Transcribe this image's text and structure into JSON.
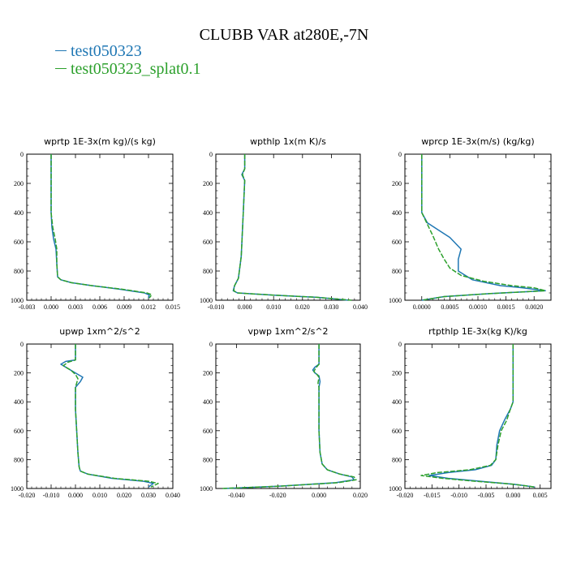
{
  "title": "CLUBB VAR at280E,-7N",
  "legend": [
    {
      "label": "test050323",
      "color": "#1f77b4"
    },
    {
      "label": "test050323_splat0.1",
      "color": "#2ca02c"
    }
  ],
  "chart_data": [
    {
      "type": "line",
      "title": "wprtp   1E-3x(m kg)/(s kg)",
      "xlim": [
        -0.003,
        0.015
      ],
      "ylim": [
        1000,
        0
      ],
      "xticks": [
        -0.003,
        0.0,
        0.003,
        0.006,
        0.009,
        0.012,
        0.015
      ],
      "xtick_labels": [
        "-0.003",
        "0.000",
        "0.003",
        "0.006",
        "0.009",
        "0.012",
        "0.015"
      ],
      "yticks": [
        0,
        200,
        400,
        600,
        800,
        1000
      ],
      "ytick_labels": [
        "0",
        "200",
        "400",
        "600",
        "800",
        "1000"
      ],
      "series": [
        {
          "name": "test050323",
          "x": [
            0.0,
            0.0,
            0.0,
            0.0001,
            0.0003,
            0.0006,
            0.0007,
            0.0008,
            0.0012,
            0.0025,
            0.005,
            0.0085,
            0.0115,
            0.0121,
            0.012
          ],
          "y": [
            0,
            200,
            400,
            500,
            580,
            650,
            750,
            840,
            860,
            880,
            900,
            925,
            950,
            965,
            985
          ]
        },
        {
          "name": "test050323_splat0.1",
          "x": [
            0.0,
            0.0,
            0.0,
            0.0002,
            0.0005,
            0.0007,
            0.0007,
            0.0008,
            0.0012,
            0.0025,
            0.005,
            0.0088,
            0.0118,
            0.0124,
            0.0121
          ],
          "y": [
            0,
            200,
            400,
            500,
            580,
            650,
            750,
            840,
            860,
            880,
            900,
            925,
            950,
            962,
            985
          ]
        }
      ]
    },
    {
      "type": "line",
      "title": "wpthlp   1x(m K)/s",
      "xlim": [
        -0.01,
        0.04
      ],
      "ylim": [
        1000,
        0
      ],
      "xticks": [
        -0.01,
        0.0,
        0.01,
        0.02,
        0.03,
        0.04
      ],
      "xtick_labels": [
        "-0.010",
        "0.000",
        "0.010",
        "0.020",
        "0.030",
        "0.040"
      ],
      "yticks": [
        0,
        200,
        400,
        600,
        800,
        1000
      ],
      "ytick_labels": [
        "0",
        "200",
        "400",
        "600",
        "800",
        "1000"
      ],
      "series": [
        {
          "name": "test050323",
          "x": [
            0.0,
            0.0,
            -0.001,
            0.0,
            -0.0005,
            -0.0012,
            -0.0022,
            -0.0035,
            -0.004,
            -0.0025,
            0.01,
            0.025,
            0.036
          ],
          "y": [
            0,
            100,
            140,
            180,
            400,
            700,
            850,
            900,
            935,
            950,
            965,
            980,
            1000
          ]
        },
        {
          "name": "test050323_splat0.1",
          "x": [
            0.0,
            0.0,
            -0.0008,
            0.0,
            -0.0005,
            -0.0012,
            -0.0022,
            -0.0035,
            -0.0038,
            -0.0025,
            0.01,
            0.025,
            0.037
          ],
          "y": [
            0,
            100,
            140,
            180,
            400,
            700,
            850,
            900,
            935,
            950,
            965,
            980,
            1000
          ]
        }
      ]
    },
    {
      "type": "line",
      "title": "wprcp   1E-3x(m/s) (kg/kg)",
      "xlim": [
        -0.0003,
        0.0023
      ],
      "ylim": [
        1000,
        0
      ],
      "xticks": [
        0.0,
        0.0005,
        0.001,
        0.0015,
        0.002
      ],
      "xtick_labels": [
        "0.0000",
        "0.0005",
        "0.0010",
        "0.0015",
        "0.0020"
      ],
      "yticks": [
        0,
        200,
        400,
        600,
        800,
        1000
      ],
      "ytick_labels": [
        "0",
        "200",
        "400",
        "600",
        "800",
        "1000"
      ],
      "series": [
        {
          "name": "test050323",
          "x": [
            0.0,
            0.0,
            0.0,
            0.0001,
            0.0003,
            0.0005,
            0.0007,
            0.00065,
            0.00065,
            0.0009,
            0.0014,
            0.0018,
            0.0022,
            0.0012,
            0.0004,
            0.0
          ],
          "y": [
            0,
            300,
            400,
            470,
            520,
            570,
            650,
            720,
            800,
            860,
            900,
            915,
            935,
            955,
            975,
            1000
          ]
        },
        {
          "name": "test050323_splat0.1",
          "x": [
            0.0,
            0.0,
            0.0,
            0.0001,
            0.0002,
            0.0003,
            0.0004,
            0.0005,
            0.0007,
            0.0011,
            0.0016,
            0.002,
            0.0022,
            0.0012,
            0.0004,
            0.0
          ],
          "y": [
            0,
            300,
            400,
            480,
            560,
            650,
            720,
            780,
            830,
            870,
            900,
            915,
            935,
            955,
            975,
            1000
          ]
        }
      ]
    },
    {
      "type": "line",
      "title": "upwp   1xm^2/s^2",
      "xlim": [
        -0.02,
        0.04
      ],
      "ylim": [
        1000,
        0
      ],
      "xticks": [
        -0.02,
        -0.01,
        0.0,
        0.01,
        0.02,
        0.03,
        0.04
      ],
      "xtick_labels": [
        "-0.020",
        "-0.010",
        "0.000",
        "0.010",
        "0.020",
        "0.030",
        "0.040"
      ],
      "yticks": [
        0,
        200,
        400,
        600,
        800,
        1000
      ],
      "ytick_labels": [
        "0",
        "200",
        "400",
        "600",
        "800",
        "1000"
      ],
      "series": [
        {
          "name": "test050323",
          "x": [
            0.0,
            0.0,
            -0.004,
            -0.006,
            -0.003,
            0.0,
            0.003,
            0.002,
            0.0,
            0.0,
            0.0005,
            0.001,
            0.0015,
            0.002,
            0.005,
            0.015,
            0.028,
            0.032,
            0.03
          ],
          "y": [
            0,
            110,
            120,
            140,
            170,
            200,
            230,
            260,
            300,
            450,
            600,
            750,
            850,
            880,
            900,
            930,
            950,
            965,
            990
          ]
        },
        {
          "name": "test050323_splat0.1",
          "x": [
            0.0,
            0.0,
            -0.003,
            -0.005,
            -0.002,
            0.0,
            0.001,
            0.0005,
            0.0,
            0.0,
            0.0005,
            0.001,
            0.0015,
            0.002,
            0.005,
            0.016,
            0.03,
            0.034,
            0.031
          ],
          "y": [
            0,
            110,
            125,
            150,
            180,
            210,
            240,
            270,
            300,
            450,
            600,
            750,
            850,
            880,
            900,
            930,
            950,
            965,
            990
          ]
        }
      ]
    },
    {
      "type": "line",
      "title": "vpwp   1xm^2/s^2",
      "xlim": [
        -0.05,
        0.02
      ],
      "ylim": [
        1000,
        0
      ],
      "xticks": [
        -0.04,
        -0.02,
        0.0,
        0.02
      ],
      "xtick_labels": [
        "-0.040",
        "-0.020",
        "0.000",
        "0.020"
      ],
      "yticks": [
        0,
        200,
        400,
        600,
        800,
        1000
      ],
      "ytick_labels": [
        "0",
        "200",
        "400",
        "600",
        "800",
        "1000"
      ],
      "series": [
        {
          "name": "test050323",
          "x": [
            0.0,
            0.0,
            -0.002,
            -0.003,
            -0.002,
            0.0,
            0.0005,
            0.0,
            0.0,
            0.0005,
            0.0015,
            0.004,
            0.01,
            0.016,
            0.017,
            0.008,
            -0.02,
            -0.046
          ],
          "y": [
            0,
            140,
            160,
            180,
            200,
            220,
            260,
            300,
            600,
            750,
            830,
            870,
            900,
            920,
            940,
            960,
            985,
            1000
          ]
        },
        {
          "name": "test050323_splat0.1",
          "x": [
            0.0,
            0.0,
            -0.0015,
            -0.0025,
            -0.001,
            0.0,
            -0.0005,
            0.0,
            0.0,
            0.0005,
            0.0015,
            0.004,
            0.01,
            0.017,
            0.018,
            0.009,
            -0.02,
            -0.047
          ],
          "y": [
            0,
            140,
            165,
            190,
            210,
            230,
            270,
            300,
            600,
            750,
            830,
            870,
            900,
            920,
            940,
            960,
            985,
            1000
          ]
        }
      ]
    },
    {
      "type": "line",
      "title": "rtpthlp   1E-3x(kg K)/kg",
      "xlim": [
        -0.02,
        0.007
      ],
      "ylim": [
        1000,
        0
      ],
      "xticks": [
        -0.02,
        -0.015,
        -0.01,
        -0.005,
        0.0,
        0.005
      ],
      "xtick_labels": [
        "-0.020",
        "-0.015",
        "-0.010",
        "-0.005",
        "0.000",
        "0.005"
      ],
      "yticks": [
        0,
        200,
        400,
        600,
        800,
        1000
      ],
      "ytick_labels": [
        "0",
        "200",
        "400",
        "600",
        "800",
        "1000"
      ],
      "series": [
        {
          "name": "test050323",
          "x": [
            0.0,
            0.0,
            0.0,
            -0.0005,
            -0.0015,
            -0.0025,
            -0.003,
            -0.0032,
            -0.004,
            -0.007,
            -0.012,
            -0.0155,
            -0.012,
            -0.006,
            0.0,
            0.004
          ],
          "y": [
            0,
            200,
            400,
            450,
            520,
            600,
            700,
            800,
            840,
            870,
            890,
            910,
            930,
            950,
            970,
            990
          ]
        },
        {
          "name": "test050323_splat0.1",
          "x": [
            0.0,
            0.0,
            0.0,
            -0.0005,
            -0.0012,
            -0.0022,
            -0.0028,
            -0.0032,
            -0.0042,
            -0.008,
            -0.014,
            -0.017,
            -0.013,
            -0.007,
            0.0,
            0.004
          ],
          "y": [
            0,
            200,
            400,
            450,
            530,
            600,
            700,
            800,
            840,
            870,
            890,
            910,
            930,
            950,
            970,
            990
          ]
        }
      ]
    }
  ]
}
